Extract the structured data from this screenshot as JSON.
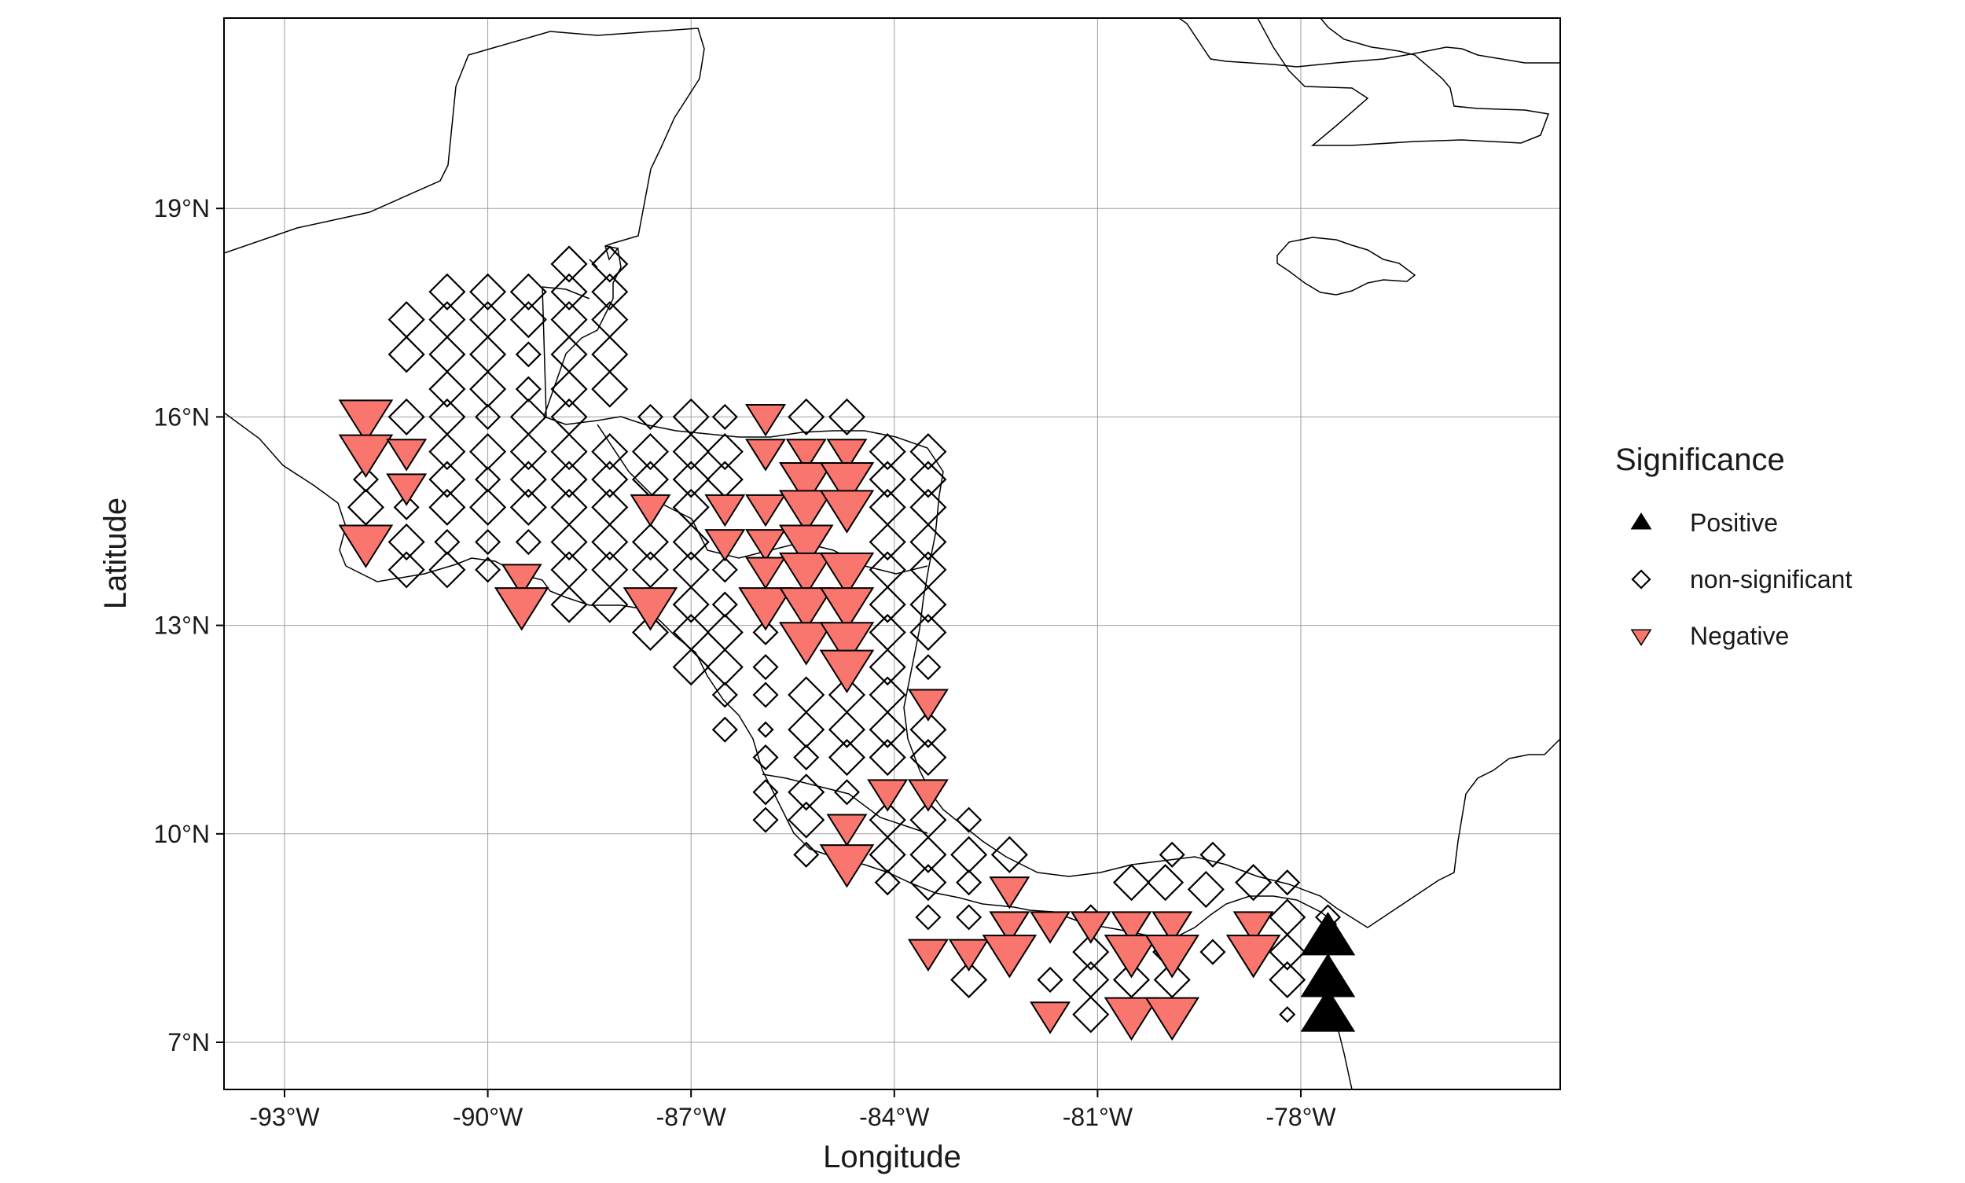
{
  "chart_data": {
    "type": "scatter",
    "subtype": "map-symbols",
    "xlabel": "Longitude",
    "ylabel": "Latitude",
    "xlim": [
      -94,
      -74.2
    ],
    "ylim": [
      6.3,
      21.7
    ],
    "x_ticks": [
      {
        "value": -93,
        "label": "-93°W"
      },
      {
        "value": -90,
        "label": "-90°W"
      },
      {
        "value": -87,
        "label": "-87°W"
      },
      {
        "value": -84,
        "label": "-84°W"
      },
      {
        "value": -81,
        "label": "-81°W"
      },
      {
        "value": -78,
        "label": "-78°W"
      }
    ],
    "y_ticks": [
      {
        "value": 7,
        "label": "7°N"
      },
      {
        "value": 10,
        "label": "10°N"
      },
      {
        "value": 13,
        "label": "13°N"
      },
      {
        "value": 16,
        "label": "16°N"
      },
      {
        "value": 19,
        "label": "19°N"
      }
    ],
    "grid": true,
    "legend": {
      "title": "Significance",
      "position": "right",
      "entries": [
        {
          "label": "Positive",
          "shape": "triangle-up",
          "color": "#000000"
        },
        {
          "label": "non-significant",
          "shape": "diamond-open",
          "color": "#000000"
        },
        {
          "label": "Negative",
          "shape": "triangle-down",
          "color": "#F8766D"
        }
      ]
    },
    "series": [
      {
        "name": "Positive",
        "points": [
          [
            -77.6,
            8.5,
            3
          ],
          [
            -77.6,
            7.9,
            3
          ],
          [
            -77.6,
            7.4,
            3
          ]
        ]
      },
      {
        "name": "Negative",
        "points": [
          [
            -91.8,
            16.0,
            3
          ],
          [
            -91.8,
            15.5,
            3
          ],
          [
            -91.2,
            15.5,
            2
          ],
          [
            -91.2,
            15.0,
            2
          ],
          [
            -91.8,
            14.2,
            3
          ],
          [
            -89.5,
            13.7,
            2
          ],
          [
            -89.5,
            13.3,
            3
          ],
          [
            -87.6,
            14.7,
            2
          ],
          [
            -87.6,
            13.3,
            3
          ],
          [
            -86.5,
            14.7,
            2
          ],
          [
            -86.5,
            14.2,
            2
          ],
          [
            -85.9,
            16.0,
            2
          ],
          [
            -85.9,
            15.5,
            2
          ],
          [
            -85.9,
            14.7,
            2
          ],
          [
            -85.9,
            14.2,
            2
          ],
          [
            -85.9,
            13.8,
            2
          ],
          [
            -85.9,
            13.3,
            3
          ],
          [
            -85.3,
            15.5,
            2
          ],
          [
            -85.3,
            15.1,
            3
          ],
          [
            -85.3,
            14.7,
            3
          ],
          [
            -85.3,
            14.2,
            3
          ],
          [
            -85.3,
            13.8,
            3
          ],
          [
            -85.3,
            13.3,
            3
          ],
          [
            -85.3,
            12.8,
            3
          ],
          [
            -84.7,
            15.5,
            2
          ],
          [
            -84.7,
            15.1,
            3
          ],
          [
            -84.7,
            14.7,
            3
          ],
          [
            -84.7,
            13.8,
            3
          ],
          [
            -84.7,
            13.3,
            3
          ],
          [
            -84.7,
            12.8,
            3
          ],
          [
            -84.7,
            12.4,
            3
          ],
          [
            -83.5,
            11.9,
            2
          ],
          [
            -84.1,
            10.6,
            2
          ],
          [
            -83.5,
            10.6,
            2
          ],
          [
            -84.7,
            10.1,
            2
          ],
          [
            -84.7,
            9.6,
            3
          ],
          [
            -83.5,
            8.3,
            2
          ],
          [
            -82.9,
            8.3,
            2
          ],
          [
            -82.3,
            9.2,
            2
          ],
          [
            -82.3,
            8.7,
            2
          ],
          [
            -82.3,
            8.3,
            3
          ],
          [
            -81.7,
            8.7,
            2
          ],
          [
            -81.1,
            8.7,
            2
          ],
          [
            -80.5,
            8.7,
            2
          ],
          [
            -80.5,
            8.3,
            3
          ],
          [
            -79.9,
            8.7,
            2
          ],
          [
            -79.9,
            8.3,
            3
          ],
          [
            -78.7,
            8.7,
            2
          ],
          [
            -78.7,
            8.3,
            3
          ],
          [
            -81.7,
            7.4,
            2
          ],
          [
            -80.5,
            7.4,
            3
          ],
          [
            -79.9,
            7.4,
            3
          ]
        ]
      },
      {
        "name": "non-significant",
        "points": [
          [
            -90.6,
            17.8,
            2
          ],
          [
            -90.0,
            17.8,
            2
          ],
          [
            -89.4,
            17.8,
            2
          ],
          [
            -88.8,
            18.2,
            2
          ],
          [
            -88.8,
            17.8,
            2
          ],
          [
            -88.2,
            18.2,
            2
          ],
          [
            -88.2,
            17.8,
            2
          ],
          [
            -91.2,
            17.4,
            2
          ],
          [
            -90.6,
            17.4,
            2
          ],
          [
            -90.0,
            17.4,
            2
          ],
          [
            -89.4,
            17.4,
            2
          ],
          [
            -88.8,
            17.4,
            2
          ],
          [
            -88.2,
            17.4,
            2
          ],
          [
            -91.2,
            16.9,
            2
          ],
          [
            -90.6,
            16.9,
            2
          ],
          [
            -90.0,
            16.9,
            2
          ],
          [
            -89.4,
            16.9,
            1
          ],
          [
            -88.8,
            16.9,
            2
          ],
          [
            -88.2,
            16.9,
            2
          ],
          [
            -90.6,
            16.4,
            2
          ],
          [
            -90.0,
            16.4,
            2
          ],
          [
            -89.4,
            16.4,
            1
          ],
          [
            -88.8,
            16.4,
            2
          ],
          [
            -88.2,
            16.4,
            2
          ],
          [
            -91.2,
            16.0,
            2
          ],
          [
            -90.6,
            16.0,
            2
          ],
          [
            -90.0,
            16.0,
            1
          ],
          [
            -89.4,
            16.0,
            2
          ],
          [
            -88.8,
            16.0,
            2
          ],
          [
            -87.6,
            16.0,
            1
          ],
          [
            -87.0,
            16.0,
            2
          ],
          [
            -86.5,
            16.0,
            1
          ],
          [
            -85.3,
            16.0,
            2
          ],
          [
            -84.7,
            16.0,
            2
          ],
          [
            -90.6,
            15.5,
            2
          ],
          [
            -90.0,
            15.5,
            2
          ],
          [
            -89.4,
            15.5,
            2
          ],
          [
            -88.8,
            15.5,
            2
          ],
          [
            -88.2,
            15.5,
            2
          ],
          [
            -87.6,
            15.5,
            2
          ],
          [
            -87.0,
            15.5,
            2
          ],
          [
            -86.5,
            15.5,
            2
          ],
          [
            -84.1,
            15.5,
            2
          ],
          [
            -83.5,
            15.5,
            2
          ],
          [
            -91.8,
            15.1,
            1
          ],
          [
            -90.6,
            15.1,
            2
          ],
          [
            -90.0,
            15.1,
            1
          ],
          [
            -89.4,
            15.1,
            2
          ],
          [
            -88.8,
            15.1,
            2
          ],
          [
            -88.2,
            15.1,
            2
          ],
          [
            -87.6,
            15.1,
            2
          ],
          [
            -87.0,
            15.1,
            2
          ],
          [
            -86.5,
            15.1,
            2
          ],
          [
            -84.1,
            15.1,
            2
          ],
          [
            -83.5,
            15.1,
            2
          ],
          [
            -91.8,
            14.7,
            2
          ],
          [
            -91.2,
            14.7,
            1
          ],
          [
            -90.6,
            14.7,
            2
          ],
          [
            -90.0,
            14.7,
            2
          ],
          [
            -89.4,
            14.7,
            2
          ],
          [
            -88.8,
            14.7,
            2
          ],
          [
            -88.2,
            14.7,
            2
          ],
          [
            -87.0,
            14.7,
            2
          ],
          [
            -84.1,
            14.7,
            2
          ],
          [
            -83.5,
            14.7,
            2
          ],
          [
            -91.2,
            14.2,
            2
          ],
          [
            -90.6,
            14.2,
            1
          ],
          [
            -90.0,
            14.2,
            1
          ],
          [
            -89.4,
            14.2,
            1
          ],
          [
            -88.8,
            14.2,
            2
          ],
          [
            -88.2,
            14.2,
            2
          ],
          [
            -87.6,
            14.2,
            2
          ],
          [
            -87.0,
            14.2,
            2
          ],
          [
            -84.1,
            14.2,
            2
          ],
          [
            -83.5,
            14.2,
            2
          ],
          [
            -91.2,
            13.8,
            2
          ],
          [
            -90.6,
            13.8,
            2
          ],
          [
            -90.0,
            13.8,
            1
          ],
          [
            -88.8,
            13.8,
            2
          ],
          [
            -88.2,
            13.8,
            2
          ],
          [
            -87.6,
            13.8,
            2
          ],
          [
            -87.0,
            13.8,
            2
          ],
          [
            -86.5,
            13.8,
            1
          ],
          [
            -84.1,
            13.8,
            2
          ],
          [
            -83.5,
            13.8,
            2
          ],
          [
            -88.8,
            13.3,
            2
          ],
          [
            -88.2,
            13.3,
            2
          ],
          [
            -87.0,
            13.3,
            2
          ],
          [
            -86.5,
            13.3,
            1
          ],
          [
            -84.1,
            13.3,
            2
          ],
          [
            -83.5,
            13.3,
            2
          ],
          [
            -87.6,
            12.9,
            2
          ],
          [
            -87.0,
            12.9,
            2
          ],
          [
            -86.5,
            12.9,
            2
          ],
          [
            -85.9,
            12.9,
            1
          ],
          [
            -84.1,
            12.9,
            2
          ],
          [
            -83.5,
            12.9,
            2
          ],
          [
            -87.0,
            12.4,
            2
          ],
          [
            -86.5,
            12.4,
            2
          ],
          [
            -85.9,
            12.4,
            1
          ],
          [
            -84.1,
            12.4,
            2
          ],
          [
            -83.5,
            12.4,
            1
          ],
          [
            -86.5,
            12.0,
            1
          ],
          [
            -85.9,
            12.0,
            1
          ],
          [
            -85.3,
            12.0,
            2
          ],
          [
            -84.7,
            12.0,
            2
          ],
          [
            -84.1,
            12.0,
            2
          ],
          [
            -86.5,
            11.5,
            1
          ],
          [
            -85.9,
            11.5,
            0
          ],
          [
            -85.3,
            11.5,
            2
          ],
          [
            -84.7,
            11.5,
            2
          ],
          [
            -84.1,
            11.5,
            2
          ],
          [
            -83.5,
            11.5,
            2
          ],
          [
            -85.9,
            11.1,
            1
          ],
          [
            -85.3,
            11.1,
            1
          ],
          [
            -84.7,
            11.1,
            2
          ],
          [
            -84.1,
            11.1,
            2
          ],
          [
            -83.5,
            11.1,
            2
          ],
          [
            -85.9,
            10.6,
            1
          ],
          [
            -85.3,
            10.6,
            2
          ],
          [
            -84.7,
            10.6,
            1
          ],
          [
            -85.9,
            10.2,
            1
          ],
          [
            -85.3,
            10.2,
            2
          ],
          [
            -84.1,
            10.2,
            2
          ],
          [
            -83.5,
            10.2,
            2
          ],
          [
            -82.9,
            10.2,
            1
          ],
          [
            -85.3,
            9.7,
            1
          ],
          [
            -84.1,
            9.7,
            2
          ],
          [
            -83.5,
            9.7,
            2
          ],
          [
            -82.9,
            9.7,
            2
          ],
          [
            -82.3,
            9.7,
            2
          ],
          [
            -84.1,
            9.3,
            1
          ],
          [
            -83.5,
            9.3,
            2
          ],
          [
            -82.9,
            9.3,
            1
          ],
          [
            -80.5,
            9.3,
            2
          ],
          [
            -79.9,
            9.7,
            1
          ],
          [
            -79.3,
            9.7,
            1
          ],
          [
            -78.7,
            9.3,
            2
          ],
          [
            -78.2,
            9.3,
            1
          ],
          [
            -83.5,
            8.8,
            1
          ],
          [
            -82.9,
            8.8,
            1
          ],
          [
            -81.1,
            8.8,
            1
          ],
          [
            -80.0,
            9.3,
            2
          ],
          [
            -79.4,
            9.2,
            2
          ],
          [
            -78.2,
            8.8,
            2
          ],
          [
            -77.6,
            8.8,
            1
          ],
          [
            -81.1,
            8.3,
            2
          ],
          [
            -80.0,
            8.3,
            1
          ],
          [
            -79.3,
            8.3,
            1
          ],
          [
            -78.2,
            8.3,
            2
          ],
          [
            -82.9,
            7.9,
            2
          ],
          [
            -81.7,
            7.9,
            1
          ],
          [
            -81.1,
            7.9,
            2
          ],
          [
            -80.5,
            7.9,
            2
          ],
          [
            -79.9,
            7.9,
            2
          ],
          [
            -78.2,
            7.9,
            2
          ],
          [
            -81.1,
            7.4,
            2
          ],
          [
            -78.2,
            7.4,
            0
          ]
        ]
      }
    ]
  }
}
